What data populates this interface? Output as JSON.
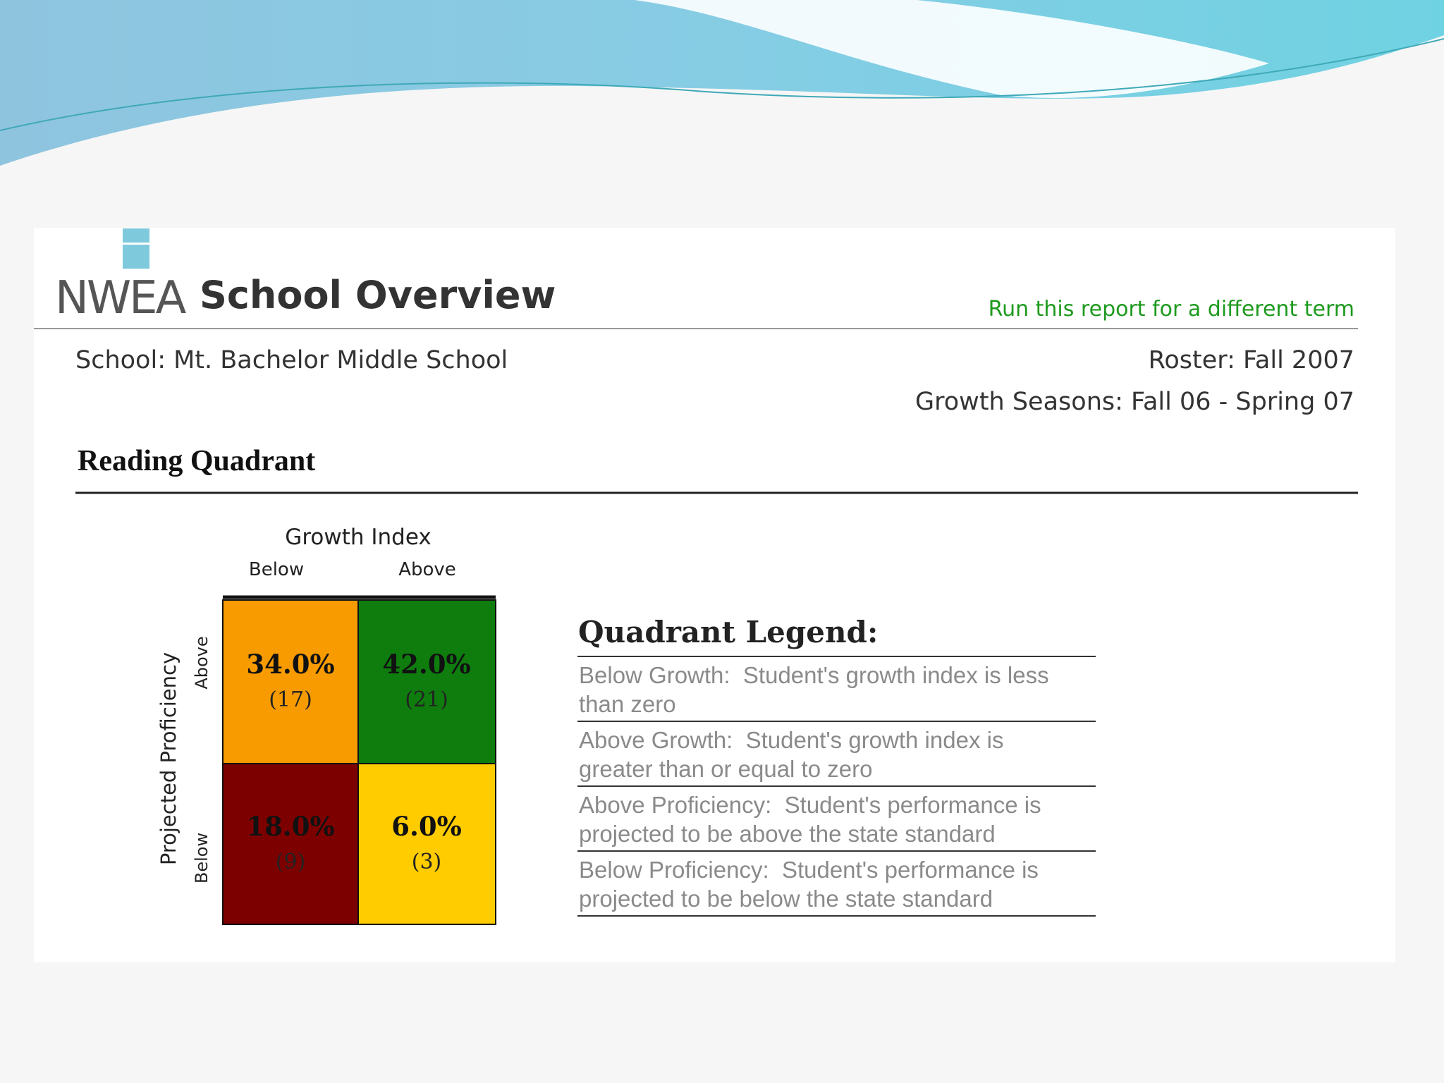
{
  "header": {
    "logo": "NWEA",
    "title": "School Overview",
    "link": "Run this report for a different term"
  },
  "info": {
    "school": "School: Mt. Bachelor Middle School",
    "roster": "Roster: Fall 2007",
    "growth_seasons": "Growth Seasons: Fall 06 - Spring 07"
  },
  "section_title": "Reading Quadrant",
  "quadrant": {
    "x_title": "Growth Index",
    "x_labels": [
      "Below",
      "Above"
    ],
    "y_title": "Projected Proficiency",
    "y_labels": [
      "Above",
      "Below"
    ],
    "cells": [
      [
        {
          "percent": "34.0%",
          "count": "(17)"
        },
        {
          "percent": "42.0%",
          "count": "(21)"
        }
      ],
      [
        {
          "percent": "18.0%",
          "count": "(9)"
        },
        {
          "percent": "6.0%",
          "count": "(3)"
        }
      ]
    ]
  },
  "legend": {
    "title": "Quadrant Legend:",
    "items": [
      [
        "Below Growth:  Student's growth index is less",
        "than zero"
      ],
      [
        "Above Growth:  Student's growth index is",
        "greater than or equal to zero"
      ],
      [
        "Above Proficiency:  Student's performance is",
        "projected to be above the state standard"
      ],
      [
        "Below Proficiency:  Student's performance is",
        "projected to be below the state standard"
      ]
    ]
  }
}
